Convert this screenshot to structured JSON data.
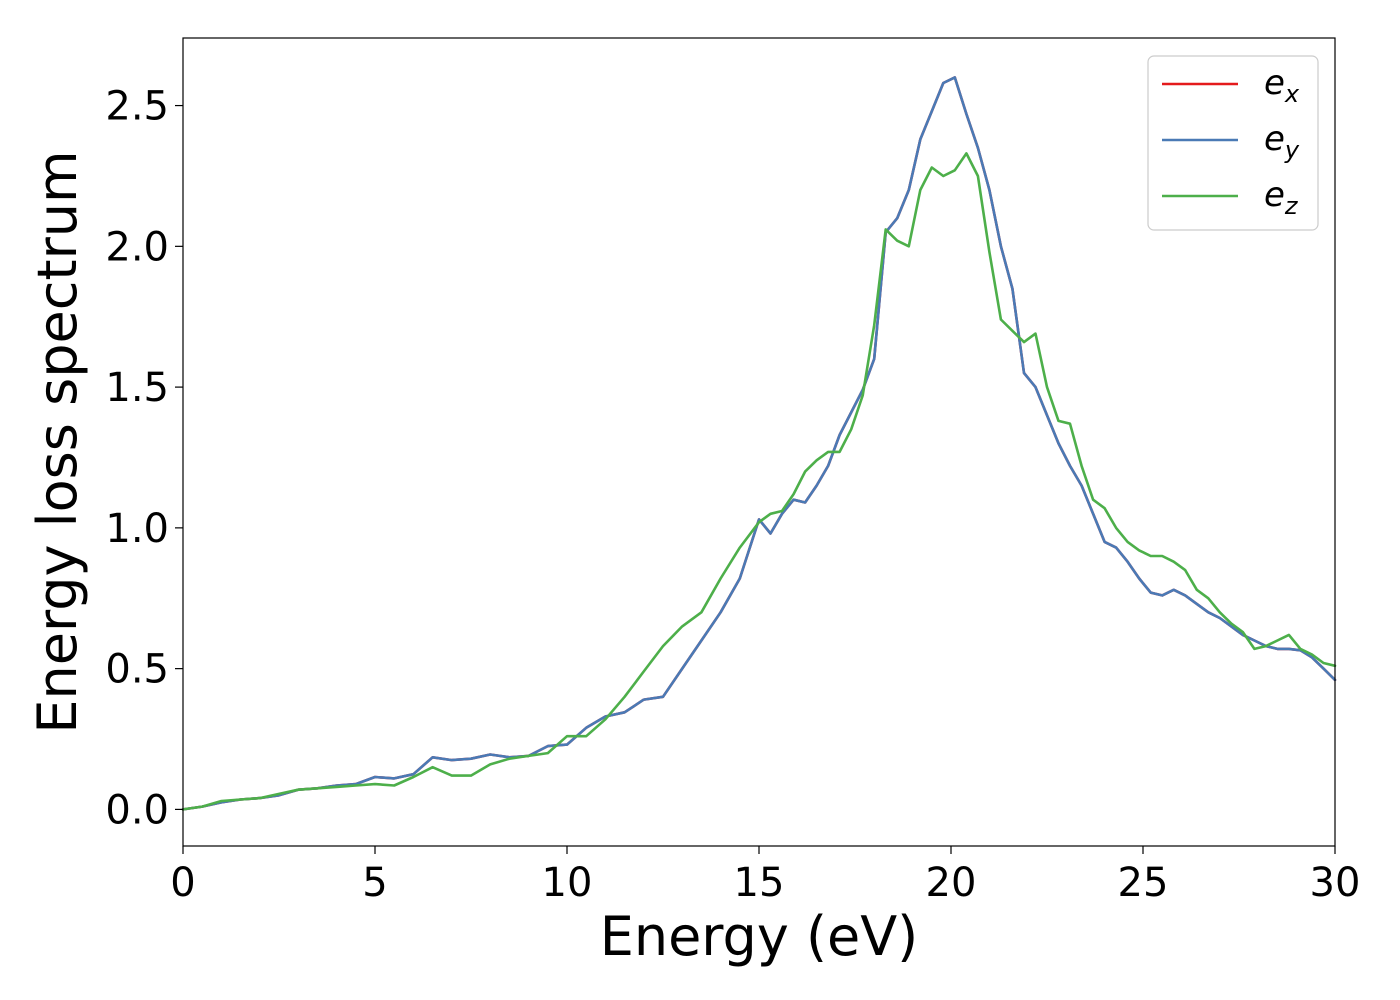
{
  "chart_data": {
    "type": "line",
    "xlabel": "Energy (eV)",
    "ylabel": "Energy loss spectrum",
    "xlim": [
      0,
      30
    ],
    "ylim": [
      -0.13,
      2.74
    ],
    "xticks": [
      0,
      5,
      10,
      15,
      20,
      25,
      30
    ],
    "yticks": [
      0.0,
      0.5,
      1.0,
      1.5,
      2.0,
      2.5
    ],
    "xtick_labels": [
      "0",
      "5",
      "10",
      "15",
      "20",
      "25",
      "30"
    ],
    "ytick_labels": [
      "0.0",
      "0.5",
      "1.0",
      "1.5",
      "2.0",
      "2.5"
    ],
    "grid": false,
    "legend_position": "top-right",
    "series": [
      {
        "name": "e_x",
        "legend_base": "e",
        "legend_sub": "x",
        "color": "#e41a1c",
        "x": [
          0,
          0.5,
          1,
          1.5,
          2,
          2.5,
          3,
          3.5,
          4,
          4.5,
          5,
          5.5,
          6,
          6.5,
          7,
          7.5,
          8,
          8.5,
          9,
          9.5,
          10,
          10.5,
          11,
          11.5,
          12,
          12.5,
          13,
          13.5,
          14,
          14.5,
          15,
          15.3,
          15.6,
          15.9,
          16.2,
          16.5,
          16.8,
          17.1,
          17.4,
          17.7,
          18,
          18.3,
          18.6,
          18.9,
          19.2,
          19.5,
          19.8,
          20.1,
          20.4,
          20.7,
          21,
          21.3,
          21.6,
          21.9,
          22.2,
          22.5,
          22.8,
          23.1,
          23.4,
          23.7,
          24,
          24.3,
          24.6,
          24.9,
          25.2,
          25.5,
          25.8,
          26.1,
          26.4,
          26.7,
          27,
          27.3,
          27.6,
          27.9,
          28.2,
          28.5,
          28.8,
          29.1,
          29.4,
          29.7,
          30
        ],
        "y": [
          0.0,
          0.01,
          0.025,
          0.035,
          0.04,
          0.05,
          0.07,
          0.075,
          0.085,
          0.09,
          0.115,
          0.11,
          0.125,
          0.185,
          0.175,
          0.18,
          0.195,
          0.185,
          0.19,
          0.225,
          0.23,
          0.29,
          0.33,
          0.345,
          0.39,
          0.4,
          0.5,
          0.6,
          0.7,
          0.82,
          1.03,
          0.98,
          1.05,
          1.1,
          1.09,
          1.15,
          1.22,
          1.33,
          1.41,
          1.49,
          1.6,
          2.05,
          2.1,
          2.2,
          2.38,
          2.48,
          2.58,
          2.6,
          2.47,
          2.35,
          2.2,
          2.0,
          1.85,
          1.55,
          1.5,
          1.4,
          1.3,
          1.22,
          1.15,
          1.05,
          0.95,
          0.93,
          0.88,
          0.82,
          0.77,
          0.76,
          0.78,
          0.76,
          0.73,
          0.7,
          0.68,
          0.65,
          0.62,
          0.6,
          0.58,
          0.57,
          0.57,
          0.565,
          0.54,
          0.5,
          0.46
        ]
      },
      {
        "name": "e_y",
        "legend_base": "e",
        "legend_sub": "y",
        "color": "#4a7ab5",
        "x": [
          0,
          0.5,
          1,
          1.5,
          2,
          2.5,
          3,
          3.5,
          4,
          4.5,
          5,
          5.5,
          6,
          6.5,
          7,
          7.5,
          8,
          8.5,
          9,
          9.5,
          10,
          10.5,
          11,
          11.5,
          12,
          12.5,
          13,
          13.5,
          14,
          14.5,
          15,
          15.3,
          15.6,
          15.9,
          16.2,
          16.5,
          16.8,
          17.1,
          17.4,
          17.7,
          18,
          18.3,
          18.6,
          18.9,
          19.2,
          19.5,
          19.8,
          20.1,
          20.4,
          20.7,
          21,
          21.3,
          21.6,
          21.9,
          22.2,
          22.5,
          22.8,
          23.1,
          23.4,
          23.7,
          24,
          24.3,
          24.6,
          24.9,
          25.2,
          25.5,
          25.8,
          26.1,
          26.4,
          26.7,
          27,
          27.3,
          27.6,
          27.9,
          28.2,
          28.5,
          28.8,
          29.1,
          29.4,
          29.7,
          30
        ],
        "y": [
          0.0,
          0.01,
          0.025,
          0.035,
          0.04,
          0.05,
          0.07,
          0.075,
          0.085,
          0.09,
          0.115,
          0.11,
          0.125,
          0.185,
          0.175,
          0.18,
          0.195,
          0.185,
          0.19,
          0.225,
          0.23,
          0.29,
          0.33,
          0.345,
          0.39,
          0.4,
          0.5,
          0.6,
          0.7,
          0.82,
          1.03,
          0.98,
          1.05,
          1.1,
          1.09,
          1.15,
          1.22,
          1.33,
          1.41,
          1.49,
          1.6,
          2.05,
          2.1,
          2.2,
          2.38,
          2.48,
          2.58,
          2.6,
          2.47,
          2.35,
          2.2,
          2.0,
          1.85,
          1.55,
          1.5,
          1.4,
          1.3,
          1.22,
          1.15,
          1.05,
          0.95,
          0.93,
          0.88,
          0.82,
          0.77,
          0.76,
          0.78,
          0.76,
          0.73,
          0.7,
          0.68,
          0.65,
          0.62,
          0.6,
          0.58,
          0.57,
          0.57,
          0.565,
          0.54,
          0.5,
          0.46
        ]
      },
      {
        "name": "e_z",
        "legend_base": "e",
        "legend_sub": "z",
        "color": "#4daf4a",
        "x": [
          0,
          0.5,
          1,
          1.5,
          2,
          2.5,
          3,
          3.5,
          4,
          4.5,
          5,
          5.5,
          6,
          6.5,
          7,
          7.5,
          8,
          8.5,
          9,
          9.5,
          10,
          10.5,
          11,
          11.5,
          12,
          12.5,
          13,
          13.5,
          14,
          14.5,
          15,
          15.3,
          15.6,
          15.9,
          16.2,
          16.5,
          16.8,
          17.1,
          17.4,
          17.7,
          18,
          18.3,
          18.6,
          18.9,
          19.2,
          19.5,
          19.8,
          20.1,
          20.4,
          20.7,
          21,
          21.3,
          21.6,
          21.9,
          22.2,
          22.5,
          22.8,
          23.1,
          23.4,
          23.7,
          24,
          24.3,
          24.6,
          24.9,
          25.2,
          25.5,
          25.8,
          26.1,
          26.4,
          26.7,
          27,
          27.3,
          27.6,
          27.9,
          28.2,
          28.5,
          28.8,
          29.1,
          29.4,
          29.7,
          30
        ],
        "y": [
          0.0,
          0.01,
          0.03,
          0.035,
          0.04,
          0.055,
          0.07,
          0.075,
          0.08,
          0.085,
          0.09,
          0.085,
          0.115,
          0.15,
          0.12,
          0.12,
          0.16,
          0.18,
          0.19,
          0.2,
          0.26,
          0.26,
          0.32,
          0.4,
          0.49,
          0.58,
          0.65,
          0.7,
          0.82,
          0.93,
          1.02,
          1.05,
          1.06,
          1.12,
          1.2,
          1.24,
          1.27,
          1.27,
          1.35,
          1.47,
          1.72,
          2.06,
          2.02,
          2.0,
          2.2,
          2.28,
          2.25,
          2.27,
          2.33,
          2.25,
          1.98,
          1.74,
          1.7,
          1.66,
          1.69,
          1.5,
          1.38,
          1.37,
          1.22,
          1.1,
          1.07,
          1.0,
          0.95,
          0.92,
          0.9,
          0.9,
          0.88,
          0.85,
          0.78,
          0.75,
          0.7,
          0.66,
          0.63,
          0.57,
          0.58,
          0.6,
          0.62,
          0.57,
          0.55,
          0.52,
          0.51
        ]
      }
    ]
  }
}
